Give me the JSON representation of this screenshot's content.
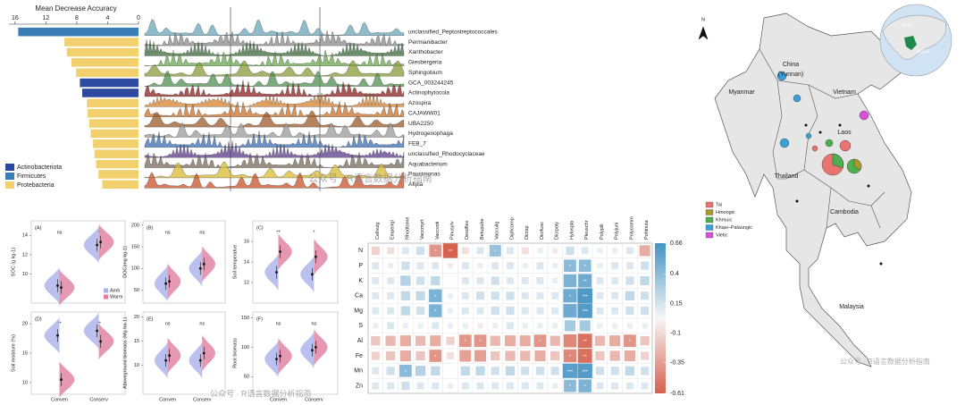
{
  "chart_data": [
    {
      "type": "bar",
      "orientation": "horizontal",
      "title": "Mean Decrease Accuracy",
      "categories": [
        "unclassified_Peptostreptococcales",
        "Permianibacter",
        "Xanthobacter",
        "Giesbergeria",
        "Sphingobium",
        "GCA_003244245",
        "Actinophytocola",
        "Azospira",
        "CAJAWW01",
        "UBA2250",
        "Hydrogenophaga",
        "FEB_7",
        "unclassified_Rhodocyclaceae",
        "Aquabacterium",
        "Paucimonas",
        "Afipia"
      ],
      "values": [
        15.6,
        9.6,
        9.3,
        8.7,
        8.1,
        7.6,
        7.3,
        6.7,
        6.6,
        6.4,
        6.2,
        5.9,
        5.7,
        5.5,
        5.2,
        4.7
      ],
      "colors": [
        "#3b7db5",
        "#f3d06e",
        "#f3d06e",
        "#f3d06e",
        "#f3d06e",
        "#2d4aa0",
        "#2d4aa0",
        "#f3d06e",
        "#f3d06e",
        "#f3d06e",
        "#f3d06e",
        "#f3d06e",
        "#f3d06e",
        "#f3d06e",
        "#f3d06e",
        "#f3d06e"
      ],
      "legend": [
        {
          "name": "Actinobacteriota",
          "color": "#2d4aa0"
        },
        {
          "name": "Firmicutes",
          "color": "#3b7db5"
        },
        {
          "name": "Protebacteria",
          "color": "#f3d06e"
        }
      ],
      "xlim": [
        16.8,
        0
      ],
      "xticks": [
        16,
        12,
        8,
        4,
        0
      ]
    },
    {
      "type": "violin",
      "categories": [
        "Conven",
        "Conserv"
      ],
      "legend": [
        {
          "name": "Amb",
          "color": "#a9b2ea"
        },
        {
          "name": "Warm",
          "color": "#e07d9e"
        }
      ],
      "panels": [
        {
          "label": "(A)",
          "ylabel": "SOC (g kg-1)",
          "ylim": [
            7,
            15.5
          ],
          "yticks": [
            10,
            12,
            14
          ],
          "series": [
            [
              8.8,
              13
            ],
            [
              8.6,
              13.3
            ]
          ],
          "significance": [
            "ns",
            "*"
          ]
        },
        {
          "label": "(B)",
          "ylabel": "DOC(mg kg-1)",
          "ylim": [
            20,
            210
          ],
          "yticks": [
            50,
            100,
            150,
            200
          ],
          "series": [
            [
              65,
              100
            ],
            [
              70,
              110
            ]
          ],
          "significance": [
            "ns",
            "ns"
          ]
        },
        {
          "label": "(C)",
          "ylabel": "Soil temperatue",
          "ylim": [
            10,
            18
          ],
          "yticks": [
            12,
            14,
            16
          ],
          "series": [
            [
              13,
              12.8
            ],
            [
              15,
              14.5
            ]
          ],
          "significance": [
            "**",
            "*"
          ]
        },
        {
          "label": "(D)",
          "ylabel": "Soil moisture (%)",
          "ylim": [
            8,
            22
          ],
          "yticks": [
            10,
            15,
            20
          ],
          "series": [
            [
              18,
              18.8
            ],
            [
              10.5,
              17
            ]
          ],
          "significance": [
            "**",
            "**"
          ]
        },
        {
          "label": "(E)",
          "ylabel": "Aboveground biomass (Mg ha-1)",
          "ylim": [
            4,
            21
          ],
          "yticks": [
            10,
            15,
            20
          ],
          "series": [
            [
              11,
              11
            ],
            [
              12,
              12.5
            ]
          ],
          "significance": [
            "ns",
            "ns"
          ]
        },
        {
          "label": "(F)",
          "ylabel": "Root biomass",
          "ylim": [
            20,
            160
          ],
          "yticks": [
            50,
            100,
            150
          ],
          "series": [
            [
              80,
              95
            ],
            [
              85,
              100
            ]
          ],
          "significance": [
            "ns",
            "ns"
          ]
        }
      ]
    },
    {
      "type": "heatmap",
      "columns": [
        "Cellvulg",
        "Empeirgi",
        "Rhodtome",
        "Vaccmyrt",
        "Vaccvoti",
        "Pinusylv",
        "Desdflex",
        "Betupube",
        "Vaccuilg",
        "Diphcomp",
        "Dicrsp",
        "Dicrfusc",
        "Dicrpoly",
        "Hylospla",
        "Pleuschr",
        "Polypili",
        "Polyjuni",
        "Polycomm",
        "Pohlnuta"
      ],
      "rows": [
        "N",
        "P",
        "K",
        "Ca",
        "Mg",
        "S",
        "Al",
        "Fe",
        "Mn",
        "Zn"
      ],
      "values": [
        [
          -0.15,
          -0.1,
          0.1,
          0.15,
          -0.4,
          -0.6,
          -0.1,
          0.1,
          0.35,
          0.1,
          -0.1,
          0.05,
          -0.05,
          0.15,
          0.1,
          0.05,
          -0.05,
          0.1,
          -0.3
        ],
        [
          0.1,
          0.05,
          0.15,
          0.1,
          0.1,
          -0.05,
          0.1,
          0.05,
          0.1,
          0.1,
          0.05,
          0.1,
          0.05,
          0.4,
          0.4,
          0.05,
          0.1,
          0.1,
          0.15
        ],
        [
          0.1,
          0.1,
          0.25,
          0.15,
          0.2,
          0,
          0.1,
          0.1,
          0.15,
          0.1,
          0.1,
          0.1,
          0.05,
          0.45,
          0.5,
          0.1,
          0.1,
          0.15,
          0.2
        ],
        [
          0.1,
          0.1,
          0.2,
          0.2,
          0.45,
          0.05,
          0.1,
          0.15,
          0.15,
          0.15,
          0.1,
          0.1,
          0.1,
          0.5,
          0.62,
          0.1,
          0.1,
          0.2,
          0.15
        ],
        [
          0.1,
          0.1,
          0.2,
          0.15,
          0.45,
          0.05,
          0.1,
          0.1,
          0.15,
          0.15,
          0.1,
          0.1,
          0.1,
          0.5,
          0.6,
          0.1,
          0.1,
          0.15,
          0.15
        ],
        [
          0.05,
          0.1,
          0.05,
          0.05,
          0.1,
          0.05,
          0.05,
          -0.05,
          0.05,
          0.1,
          0.05,
          0.05,
          0.05,
          0.3,
          0.3,
          0.05,
          0.05,
          0.05,
          0.05
        ],
        [
          -0.2,
          -0.25,
          -0.3,
          -0.25,
          -0.3,
          -0.15,
          -0.4,
          -0.4,
          -0.25,
          -0.3,
          -0.3,
          -0.4,
          -0.25,
          -0.45,
          -0.55,
          -0.25,
          -0.3,
          -0.4,
          -0.2
        ],
        [
          -0.15,
          -0.2,
          -0.3,
          -0.2,
          -0.4,
          -0.1,
          -0.35,
          -0.35,
          -0.2,
          -0.25,
          -0.25,
          -0.3,
          -0.2,
          -0.45,
          -0.55,
          -0.2,
          -0.25,
          -0.3,
          -0.15
        ],
        [
          0.1,
          0.15,
          0.4,
          0.25,
          0.2,
          0,
          0.2,
          0.2,
          0.15,
          0.2,
          0.15,
          0.15,
          0.15,
          0.58,
          0.6,
          0.15,
          0.15,
          0.2,
          0.15
        ],
        [
          0.1,
          0.1,
          0.15,
          0.1,
          0.1,
          0.05,
          0.1,
          0.1,
          0.1,
          0.1,
          0.1,
          0.1,
          0.05,
          0.4,
          0.45,
          0.1,
          0.1,
          0.1,
          0.1
        ]
      ],
      "significance": [
        [
          null,
          null,
          null,
          null,
          "*",
          "**",
          null,
          null,
          "*",
          null,
          null,
          null,
          null,
          null,
          null,
          null,
          null,
          null,
          null
        ],
        [
          null,
          null,
          null,
          null,
          null,
          null,
          null,
          null,
          null,
          null,
          null,
          null,
          null,
          "*",
          "*",
          null,
          null,
          null,
          null
        ],
        [
          null,
          null,
          null,
          null,
          null,
          null,
          null,
          null,
          null,
          null,
          null,
          null,
          null,
          null,
          "**",
          null,
          null,
          null,
          null
        ],
        [
          null,
          null,
          null,
          null,
          "*",
          null,
          null,
          null,
          null,
          null,
          null,
          null,
          null,
          "*",
          "***",
          null,
          null,
          null,
          null
        ],
        [
          null,
          null,
          null,
          null,
          "*",
          null,
          null,
          null,
          null,
          null,
          null,
          null,
          null,
          null,
          "***",
          null,
          null,
          null,
          null
        ],
        [
          null,
          null,
          null,
          null,
          null,
          null,
          null,
          null,
          null,
          null,
          null,
          null,
          null,
          null,
          null,
          null,
          null,
          null,
          null
        ],
        [
          null,
          null,
          null,
          null,
          null,
          null,
          "*",
          "*",
          null,
          null,
          null,
          "*",
          null,
          null,
          "**",
          null,
          null,
          "*",
          null
        ],
        [
          null,
          null,
          null,
          null,
          "*",
          null,
          null,
          null,
          null,
          null,
          null,
          null,
          null,
          "*",
          "**",
          null,
          null,
          null,
          null
        ],
        [
          null,
          null,
          "*",
          null,
          null,
          null,
          null,
          null,
          null,
          null,
          null,
          null,
          null,
          "***",
          "***",
          null,
          null,
          null,
          null
        ],
        [
          null,
          null,
          null,
          null,
          null,
          null,
          null,
          null,
          null,
          null,
          null,
          null,
          null,
          "*",
          "*",
          null,
          null,
          null,
          null
        ]
      ],
      "colors": [
        "#d6604d",
        "#f7f7f7",
        "#4393c3"
      ],
      "clim": [
        -0.61,
        0.66
      ],
      "cticks": [
        0.66,
        0.4,
        0.15,
        -0.1,
        -0.35,
        -0.61
      ]
    }
  ],
  "map": {
    "labels": [
      "China",
      "(Yunnan)",
      "Myanmar",
      "Vietnam",
      "Laos",
      "Thailand",
      "Cambodia",
      "Malaysia"
    ],
    "north": "N",
    "inset": [
      "ASIA",
      "MSEA"
    ],
    "legend": [
      {
        "name": "Tai",
        "color": "#e8736f"
      },
      {
        "name": "Hmongic",
        "color": "#a89a2a"
      },
      {
        "name": "Khmuic",
        "color": "#4caf50"
      },
      {
        "name": "Khasi–Palaungic",
        "color": "#3aa0d8"
      },
      {
        "name": "Vietic",
        "color": "#d84fd8"
      }
    ]
  },
  "watermark": "公众号 · R语言数据分析指南"
}
